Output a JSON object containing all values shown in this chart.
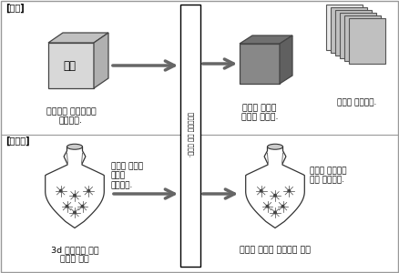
{
  "bg_color": "#ffffff",
  "label_jongnae": "[종래]",
  "label_singisul": "[신기술]",
  "text_mold": "형틀",
  "text_mold_desc": "형틀공이 베니아판을\n조립한다.",
  "text_complex_hard": "복잡한 형상은\n대응이 어렵다.",
  "text_peel": "형틀은 떼어낸다.",
  "text_surface": "형틀의 표면에\n모양을\n새겨둔다.",
  "text_3d_desc": "3d 프린터로 만든\n수지제 형틀",
  "text_complex_ok": "복잡한 형상에도\n대응 가능하다.",
  "text_resin": "수지는 그대로 외장재로 이용",
  "text_vertical": "콘크리트를 부어 넣는다.",
  "arrow_color": "#666666",
  "cube_face": "#d8d8d8",
  "cube_top": "#c0c0c0",
  "cube_right": "#b0b0b0",
  "dark_face": "#888888",
  "dark_top": "#707070",
  "dark_right": "#606060",
  "page_light": "#e8e8e8",
  "page_dark": "#c0c0c0",
  "vase_fill": "#ffffff",
  "vase_edge": "#333333"
}
